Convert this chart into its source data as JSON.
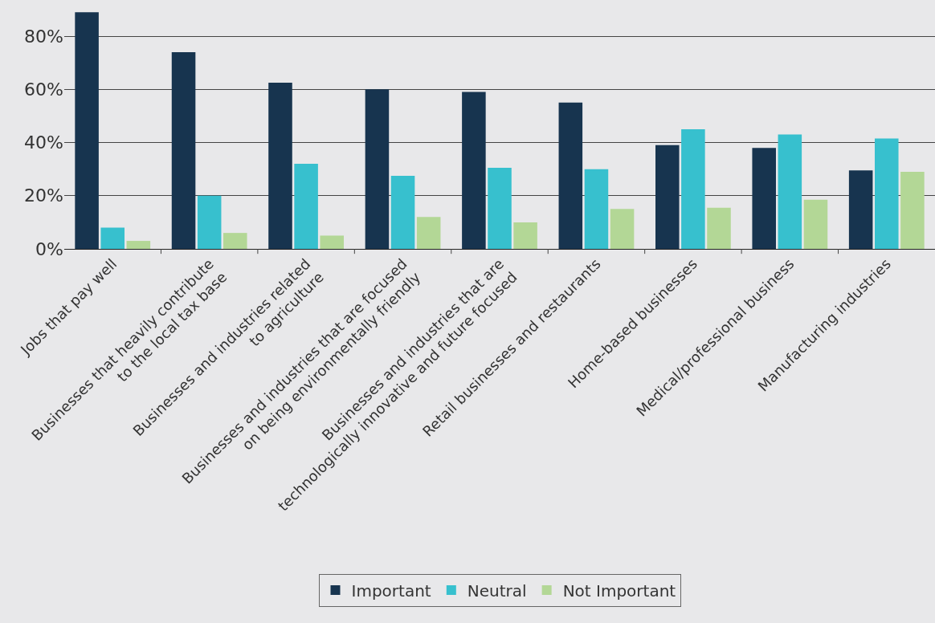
{
  "chart_data": {
    "type": "bar",
    "categories": [
      "Jobs that pay well",
      "Businesses that heavily contribute\nto the local tax base",
      "Businesses and industries related\nto agriculture",
      "Businesses and industries that are focused\non being environmentally friendly",
      "Businesses and industries that are\ntechnologically innovative and future focused",
      "Retail businesses and restaurants",
      "Home-based businesses",
      "Medical/professional business",
      "Manufacturing industries"
    ],
    "series": [
      {
        "name": "Important",
        "color": "#17344f",
        "values": [
          89,
          74,
          62.5,
          60,
          59,
          55,
          39,
          38,
          29.5
        ]
      },
      {
        "name": "Neutral",
        "color": "#37c0ce",
        "values": [
          8,
          20,
          32,
          27.5,
          30.5,
          30,
          45,
          43,
          41.5
        ]
      },
      {
        "name": "Not Important",
        "color": "#b3d796",
        "values": [
          3,
          6,
          5,
          12,
          10,
          15,
          15.5,
          18.5,
          29
        ]
      }
    ],
    "ylim": [
      0,
      93
    ],
    "yticks": [
      {
        "value": 0,
        "label": "0%"
      },
      {
        "value": 20,
        "label": "20%"
      },
      {
        "value": 40,
        "label": "40%"
      },
      {
        "value": 60,
        "label": "60%"
      },
      {
        "value": 80,
        "label": "80%"
      }
    ],
    "grid": "y",
    "legend": "bottom"
  }
}
